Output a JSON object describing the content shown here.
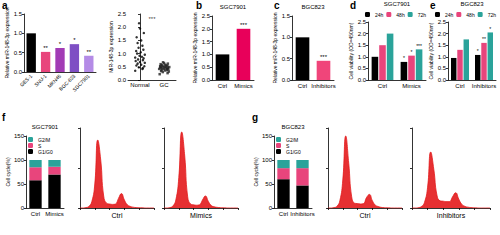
{
  "chart_data": [
    {
      "type": "bar",
      "label": "a",
      "ylabel": "Relative miR-148-3p expression",
      "categories": [
        "GES-1",
        "SNU-1",
        "MKN45",
        "BGC-823",
        "SGC7901"
      ],
      "values": [
        1.0,
        0.52,
        0.62,
        0.72,
        0.42
      ],
      "colors": [
        "#000000",
        "#e8457c",
        "#a23bb5",
        "#7e4fc4",
        "#b48be6"
      ],
      "sig": [
        null,
        "**",
        "*",
        "*",
        "**"
      ],
      "ylim": [
        0,
        1.5
      ],
      "yticks": [
        {
          "value": 0,
          "label": "0.0"
        },
        0.5,
        {
          "value": 1,
          "label": "1.0"
        },
        1.5
      ]
    },
    {
      "type": "scatter",
      "ylabel": "MiR-148-3p expression",
      "xlim": [
        -0.5,
        1.5
      ],
      "xticks": [
        {
          "value": 0,
          "label": "Normal"
        },
        {
          "value": 1,
          "label": "GC"
        }
      ],
      "ylim": [
        0,
        2.5
      ],
      "yticks": [
        {
          "value": 0,
          "label": "0.0"
        },
        0.5,
        {
          "value": 1,
          "label": "1.0"
        },
        1.5,
        {
          "value": 2,
          "label": "2.0"
        },
        2.5
      ],
      "series": [
        {
          "name": "Normal",
          "color": "#000000",
          "marker": "circle",
          "x": [
            -0.2,
            0.1,
            -0.05,
            0.18,
            -0.15,
            0.05,
            -0.1,
            0.2,
            0,
            -0.18,
            0.12,
            -0.08,
            0.15,
            -0.2,
            0.08,
            -0.02,
            0.2,
            -0.12,
            0.03,
            -0.16,
            0.14,
            -0.06,
            0.1,
            -0.1,
            0.05,
            -0.14,
            0.16,
            0,
            -0.04,
            0.12
          ],
          "values": [
            0.35,
            0.42,
            0.48,
            0.52,
            0.55,
            0.58,
            0.62,
            0.65,
            0.68,
            0.72,
            0.75,
            0.78,
            0.82,
            0.85,
            0.88,
            0.92,
            0.96,
            1.0,
            1.05,
            1.1,
            1.15,
            1.22,
            1.3,
            1.4,
            1.5,
            1.62,
            1.78,
            1.95,
            2.15,
            0.45
          ]
        },
        {
          "name": "GC",
          "color": "#222222",
          "marker": "square",
          "x": [
            0.82,
            1.15,
            0.95,
            1.2,
            0.88,
            1.05,
            0.9,
            1.18,
            1.0,
            0.8,
            1.12,
            0.92,
            1.16,
            0.85,
            1.08,
            0.98,
            1.22,
            0.86,
            1.03,
            0.84,
            1.14,
            0.94,
            1.1,
            0.9,
            1.05,
            0.86,
            1.16,
            1.0,
            0.96,
            1.12
          ],
          "values": [
            0.22,
            0.26,
            0.3,
            0.32,
            0.34,
            0.36,
            0.38,
            0.4,
            0.41,
            0.42,
            0.43,
            0.44,
            0.45,
            0.46,
            0.47,
            0.48,
            0.49,
            0.5,
            0.5,
            0.52,
            0.53,
            0.54,
            0.55,
            0.56,
            0.58,
            0.6,
            0.62,
            0.64,
            0.67,
            0.38
          ]
        }
      ],
      "annotations": [
        {
          "text": "***",
          "x": 0.5,
          "y": 2.3
        }
      ]
    },
    {
      "type": "bar",
      "label": "b",
      "title": "SGC7901",
      "ylabel": "Relative miR-148-3p expression",
      "categories": [
        "Ctrl",
        "Mimics"
      ],
      "values": [
        1.0,
        2.0
      ],
      "colors": [
        "#000000",
        "#e8005a"
      ],
      "sig": [
        null,
        "***"
      ],
      "ylim": [
        0,
        2.5
      ],
      "yticks": [
        {
          "value": 0,
          "label": "0.0"
        },
        0.5,
        {
          "value": 1,
          "label": "1.0"
        },
        1.5,
        {
          "value": 2,
          "label": "2.0"
        },
        2.5
      ]
    },
    {
      "type": "bar",
      "label": "c",
      "title": "BGC823",
      "ylabel": "Relative miR-148-3p expression",
      "categories": [
        "Ctrl",
        "Inhibitors"
      ],
      "values": [
        1.0,
        0.45
      ],
      "colors": [
        "#000000",
        "#f0457a"
      ],
      "sig": [
        null,
        "***"
      ],
      "ylim": [
        0,
        1.5
      ],
      "yticks": [
        {
          "value": 0,
          "label": "0.0"
        },
        0.5,
        {
          "value": 1,
          "label": "1.0"
        },
        1.5
      ]
    },
    {
      "type": "bar",
      "label": "d",
      "title": "SGC7901",
      "ylabel": "Cell viability (OD=450nm)",
      "categories": [
        "Ctrl",
        "Mimics"
      ],
      "legend": "top-right",
      "series": [
        {
          "name": "24h",
          "color": "#000000",
          "values": [
            1.0,
            0.78
          ],
          "sig": [
            null,
            "*"
          ]
        },
        {
          "name": "48h",
          "color": "#e8457c",
          "values": [
            1.5,
            1.05
          ],
          "sig": [
            null,
            "*"
          ]
        },
        {
          "name": "72h",
          "color": "#2aa39a",
          "values": [
            2.0,
            1.32
          ],
          "sig": [
            null,
            "***"
          ]
        }
      ],
      "ylim": [
        0,
        2.5
      ],
      "yticks": [
        {
          "value": 0,
          "label": "0.0"
        },
        0.5,
        {
          "value": 1,
          "label": "1.0"
        },
        1.5,
        {
          "value": 2,
          "label": "2.0"
        },
        2.5
      ]
    },
    {
      "type": "bar",
      "label": "e",
      "title": "BGC823",
      "ylabel": "Cell viability (OD=450nm)",
      "categories": [
        "Ctrl",
        "Inhibitors"
      ],
      "legend": "top-right",
      "series": [
        {
          "name": "24h",
          "color": "#000000",
          "values": [
            0.95,
            1.08
          ],
          "sig": [
            null,
            "*"
          ]
        },
        {
          "name": "48h",
          "color": "#e8457c",
          "values": [
            1.3,
            1.6
          ],
          "sig": [
            null,
            "**"
          ]
        },
        {
          "name": "72h",
          "color": "#2aa39a",
          "values": [
            1.75,
            2.05
          ],
          "sig": [
            null,
            "*"
          ]
        }
      ],
      "ylim": [
        0,
        2.5
      ],
      "yticks": [
        {
          "value": 0,
          "label": "0.0"
        },
        0.5,
        {
          "value": 1,
          "label": "1.0"
        },
        1.5,
        {
          "value": 2,
          "label": "2.0"
        },
        2.5
      ]
    },
    {
      "type": "bar",
      "label": "f",
      "title": "SGC7901",
      "ylabel": "Cell cycle(%)",
      "categories": [
        "Ctrl",
        "Mimics"
      ],
      "stacked": true,
      "legend": "top-left",
      "series": [
        {
          "name": "G1/G0",
          "color": "#000000",
          "values": [
            58,
            70
          ]
        },
        {
          "name": "S",
          "color": "#e8457c",
          "values": [
            27,
            16
          ]
        },
        {
          "name": "G2/M",
          "color": "#2aa39a",
          "values": [
            15,
            14
          ]
        }
      ],
      "ylim": [
        0,
        150
      ],
      "yticks": [
        0,
        50,
        100,
        150
      ]
    },
    {
      "type": "area",
      "xlabel": "Ctrl",
      "color": "#e31a1c",
      "tick_labels": false,
      "x": [
        0,
        10,
        20,
        30,
        40,
        50,
        60,
        70,
        80,
        90,
        100,
        110,
        120,
        130,
        140,
        150,
        160,
        170,
        180,
        190,
        200,
        210,
        220,
        230,
        240,
        250
      ],
      "values": [
        0,
        0,
        5,
        20,
        80,
        300,
        850,
        600,
        150,
        60,
        50,
        45,
        50,
        120,
        180,
        100,
        40,
        20,
        10,
        5,
        3,
        2,
        0,
        0,
        0,
        0
      ],
      "xlim": [
        0,
        250
      ],
      "xticks": [
        0,
        50,
        100,
        150,
        200,
        250
      ],
      "ylim": [
        0,
        1000
      ],
      "yticks": [
        0,
        500,
        1000
      ]
    },
    {
      "type": "area",
      "xlabel": "Mimics",
      "color": "#e31a1c",
      "tick_labels": false,
      "x": [
        0,
        10,
        20,
        30,
        40,
        50,
        60,
        70,
        80,
        90,
        100,
        110,
        120,
        130,
        140,
        150,
        160,
        170,
        180,
        190,
        200,
        210,
        220,
        230,
        240,
        250
      ],
      "values": [
        0,
        0,
        5,
        25,
        100,
        380,
        950,
        650,
        140,
        50,
        40,
        35,
        40,
        100,
        150,
        80,
        30,
        15,
        8,
        4,
        2,
        1,
        0,
        0,
        0,
        0
      ],
      "xlim": [
        0,
        250
      ],
      "xticks": [
        0,
        50,
        100,
        150,
        200,
        250
      ],
      "ylim": [
        0,
        1000
      ],
      "yticks": [
        0,
        500,
        1000
      ]
    },
    {
      "type": "bar",
      "label": "g",
      "title": "BGC823",
      "ylabel": "Cell cycle(%)",
      "categories": [
        "Ctrl",
        "Inhibitors"
      ],
      "stacked": true,
      "legend": "top-left",
      "series": [
        {
          "name": "G1/G0",
          "color": "#000000",
          "values": [
            60,
            47
          ]
        },
        {
          "name": "S",
          "color": "#e8457c",
          "values": [
            23,
            36
          ]
        },
        {
          "name": "G2/M",
          "color": "#2aa39a",
          "values": [
            17,
            17
          ]
        }
      ],
      "ylim": [
        0,
        150
      ],
      "yticks": [
        0,
        50,
        100,
        150
      ]
    },
    {
      "type": "area",
      "xlabel": "Ctrl",
      "color": "#e31a1c",
      "tick_labels": false,
      "x": [
        0,
        10,
        20,
        30,
        40,
        50,
        60,
        70,
        80,
        90,
        100,
        110,
        120,
        130,
        140,
        150,
        160,
        170,
        180,
        190,
        200,
        210,
        220,
        230,
        240,
        250
      ],
      "values": [
        0,
        0,
        5,
        20,
        90,
        350,
        900,
        560,
        140,
        60,
        55,
        50,
        55,
        130,
        170,
        90,
        35,
        18,
        8,
        4,
        2,
        1,
        0,
        0,
        0,
        0
      ],
      "xlim": [
        0,
        250
      ],
      "xticks": [
        0,
        50,
        100,
        150,
        200,
        250
      ],
      "ylim": [
        0,
        1000
      ],
      "yticks": [
        0,
        500,
        1000
      ]
    },
    {
      "type": "area",
      "xlabel": "Inhibitors",
      "color": "#e31a1c",
      "tick_labels": false,
      "x": [
        0,
        10,
        20,
        30,
        40,
        50,
        60,
        70,
        80,
        90,
        100,
        110,
        120,
        130,
        140,
        150,
        160,
        170,
        180,
        190,
        200,
        210,
        220,
        230,
        240,
        250
      ],
      "values": [
        0,
        0,
        4,
        18,
        70,
        260,
        700,
        480,
        160,
        90,
        85,
        80,
        80,
        140,
        190,
        110,
        45,
        20,
        10,
        5,
        2,
        1,
        0,
        0,
        0,
        0
      ],
      "xlim": [
        0,
        250
      ],
      "xticks": [
        0,
        50,
        100,
        150,
        200,
        250
      ],
      "ylim": [
        0,
        1000
      ],
      "yticks": [
        0,
        500,
        1000
      ]
    }
  ]
}
